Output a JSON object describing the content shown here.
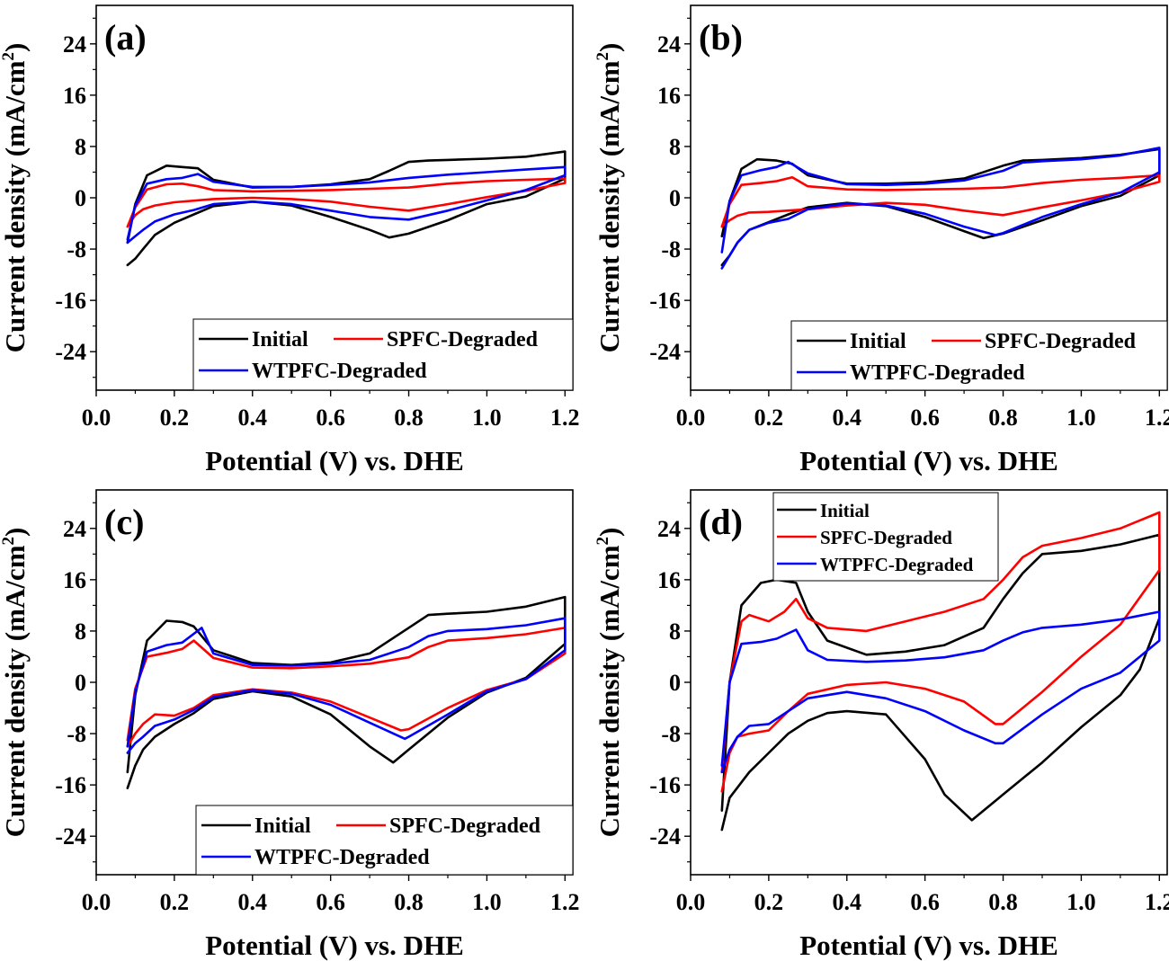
{
  "chart_data": [
    {
      "type": "line",
      "panel_label": "(a)",
      "xlabel": "Potential (V) vs. DHE",
      "ylabel": "Current density (mA/cm²)",
      "xlim": [
        0.0,
        1.22
      ],
      "ylim": [
        -30,
        30
      ],
      "xticks": [
        "0.0",
        "0.2",
        "0.4",
        "0.6",
        "0.8",
        "1.0",
        "1.2"
      ],
      "yticks": [
        "24",
        "16",
        "8",
        "0",
        "-8",
        "-16",
        "-24"
      ],
      "legend_placement": "bottom",
      "legend_layout": "two-column",
      "series": [
        {
          "name": "Initial",
          "color": "#000000",
          "x": [
            0.08,
            0.1,
            0.13,
            0.18,
            0.22,
            0.26,
            0.3,
            0.4,
            0.5,
            0.6,
            0.7,
            0.75,
            0.8,
            0.85,
            0.9,
            1.0,
            1.1,
            1.2,
            1.2,
            1.1,
            1.0,
            0.9,
            0.8,
            0.75,
            0.7,
            0.6,
            0.5,
            0.4,
            0.3,
            0.25,
            0.2,
            0.15,
            0.12,
            0.1,
            0.08
          ],
          "y": [
            -7,
            -1,
            3.5,
            5,
            4.8,
            4.6,
            2.8,
            1.6,
            1.7,
            2.1,
            2.9,
            4.2,
            5.6,
            5.8,
            5.9,
            6.1,
            6.4,
            7.2,
            3,
            0.2,
            -1,
            -3.5,
            -5.6,
            -6.2,
            -5,
            -3,
            -1.2,
            -0.6,
            -1.3,
            -2.6,
            -3.9,
            -5.8,
            -8,
            -9.5,
            -10.5
          ]
        },
        {
          "name": "SPFC-Degraded",
          "color": "#ff0000",
          "x": [
            0.08,
            0.1,
            0.13,
            0.18,
            0.22,
            0.26,
            0.3,
            0.4,
            0.5,
            0.6,
            0.7,
            0.8,
            0.9,
            1.0,
            1.1,
            1.2,
            1.2,
            1.1,
            1.0,
            0.9,
            0.8,
            0.7,
            0.6,
            0.5,
            0.4,
            0.3,
            0.2,
            0.15,
            0.12,
            0.1,
            0.08
          ],
          "y": [
            -4.5,
            -1.5,
            1.3,
            2.1,
            2.2,
            1.8,
            1.2,
            1.0,
            1.1,
            1.2,
            1.4,
            1.6,
            2.2,
            2.6,
            2.8,
            3.0,
            2.3,
            1.1,
            0.1,
            -1.0,
            -2.0,
            -1.4,
            -0.6,
            -0.2,
            0.0,
            -0.2,
            -0.7,
            -1.2,
            -1.8,
            -2.7,
            -4.5
          ]
        },
        {
          "name": "WTPFC-Degraded",
          "color": "#0000ff",
          "x": [
            0.08,
            0.1,
            0.13,
            0.18,
            0.22,
            0.26,
            0.3,
            0.4,
            0.5,
            0.6,
            0.7,
            0.8,
            0.9,
            1.0,
            1.1,
            1.2,
            1.2,
            1.1,
            1.0,
            0.9,
            0.8,
            0.7,
            0.6,
            0.5,
            0.4,
            0.3,
            0.25,
            0.2,
            0.15,
            0.12,
            0.1,
            0.08
          ],
          "y": [
            -6.5,
            -1.2,
            2.2,
            2.9,
            3.1,
            3.7,
            2.5,
            1.7,
            1.7,
            2.0,
            2.4,
            3.1,
            3.6,
            4.0,
            4.4,
            4.8,
            3.5,
            1.2,
            -0.4,
            -2.0,
            -3.4,
            -3.0,
            -2.0,
            -1.0,
            -0.6,
            -1.0,
            -1.9,
            -2.6,
            -3.7,
            -5.0,
            -6.0,
            -7.0
          ]
        }
      ]
    },
    {
      "type": "line",
      "panel_label": "(b)",
      "xlabel": "Potential (V) vs. DHE",
      "ylabel": "Current density (mA/cm²)",
      "xlim": [
        0.0,
        1.22
      ],
      "ylim": [
        -30,
        30
      ],
      "xticks": [
        "0.0",
        "0.2",
        "0.4",
        "0.6",
        "0.8",
        "1.0",
        "1.2"
      ],
      "yticks": [
        "24",
        "16",
        "8",
        "0",
        "-8",
        "-16",
        "-24"
      ],
      "legend_placement": "bottom",
      "legend_layout": "two-column",
      "series": [
        {
          "name": "Initial",
          "color": "#000000",
          "x": [
            0.08,
            0.1,
            0.13,
            0.17,
            0.22,
            0.26,
            0.3,
            0.4,
            0.5,
            0.6,
            0.7,
            0.8,
            0.85,
            0.9,
            1.0,
            1.1,
            1.2,
            1.2,
            1.1,
            1.0,
            0.9,
            0.8,
            0.75,
            0.7,
            0.6,
            0.5,
            0.4,
            0.3,
            0.25,
            0.2,
            0.15,
            0.12,
            0.1,
            0.08
          ],
          "y": [
            -6,
            -0.5,
            4.5,
            6,
            5.8,
            5.3,
            3.5,
            2.2,
            2.2,
            2.4,
            3.0,
            5.0,
            5.8,
            5.9,
            6.2,
            6.7,
            7.6,
            3.5,
            0.3,
            -1.3,
            -3.5,
            -5.6,
            -6.3,
            -5.2,
            -3.0,
            -1.3,
            -0.8,
            -1.5,
            -2.6,
            -3.8,
            -5.0,
            -7.0,
            -9.0,
            -10.5
          ]
        },
        {
          "name": "SPFC-Degraded",
          "color": "#ff0000",
          "x": [
            0.08,
            0.1,
            0.13,
            0.18,
            0.22,
            0.26,
            0.3,
            0.4,
            0.5,
            0.6,
            0.7,
            0.8,
            0.9,
            1.0,
            1.1,
            1.2,
            1.2,
            1.1,
            1.0,
            0.9,
            0.8,
            0.7,
            0.6,
            0.5,
            0.4,
            0.3,
            0.2,
            0.15,
            0.12,
            0.1,
            0.08
          ],
          "y": [
            -4.5,
            -1.0,
            2.0,
            2.3,
            2.6,
            3.2,
            1.8,
            1.3,
            1.2,
            1.3,
            1.4,
            1.6,
            2.3,
            2.8,
            3.1,
            3.5,
            2.5,
            0.8,
            -0.4,
            -1.5,
            -2.7,
            -2.0,
            -1.1,
            -0.8,
            -1.2,
            -1.8,
            -2.2,
            -2.3,
            -2.8,
            -3.5,
            -4.5
          ]
        },
        {
          "name": "WTPFC-Degraded",
          "color": "#0000ff",
          "x": [
            0.08,
            0.1,
            0.13,
            0.18,
            0.22,
            0.25,
            0.3,
            0.4,
            0.5,
            0.6,
            0.7,
            0.8,
            0.85,
            0.9,
            1.0,
            1.1,
            1.2,
            1.2,
            1.1,
            1.0,
            0.9,
            0.8,
            0.78,
            0.7,
            0.6,
            0.5,
            0.4,
            0.3,
            0.25,
            0.2,
            0.15,
            0.12,
            0.1,
            0.08
          ],
          "y": [
            -8.5,
            -0.5,
            3.5,
            4.3,
            4.8,
            5.6,
            3.8,
            2.1,
            2.0,
            2.2,
            2.7,
            4.2,
            5.5,
            5.7,
            6.0,
            6.6,
            7.8,
            4.0,
            0.8,
            -1.0,
            -3.0,
            -5.5,
            -5.8,
            -4.5,
            -2.5,
            -1.2,
            -0.9,
            -1.8,
            -3.3,
            -3.9,
            -5.0,
            -7.0,
            -9.0,
            -11.0
          ]
        }
      ]
    },
    {
      "type": "line",
      "panel_label": "(c)",
      "xlabel": "Potential (V) vs. DHE",
      "ylabel": "Current density (mA/cm²)",
      "xlim": [
        0.0,
        1.22
      ],
      "ylim": [
        -30,
        30
      ],
      "xticks": [
        "0.0",
        "0.2",
        "0.4",
        "0.6",
        "0.8",
        "1.0",
        "1.2"
      ],
      "yticks": [
        "24",
        "16",
        "8",
        "0",
        "-8",
        "-16",
        "-24"
      ],
      "legend_placement": "bottom",
      "legend_layout": "two-column",
      "series": [
        {
          "name": "Initial",
          "color": "#000000",
          "x": [
            0.08,
            0.1,
            0.13,
            0.18,
            0.22,
            0.25,
            0.3,
            0.4,
            0.5,
            0.6,
            0.7,
            0.8,
            0.85,
            0.9,
            1.0,
            1.1,
            1.2,
            1.2,
            1.1,
            1.0,
            0.9,
            0.8,
            0.76,
            0.7,
            0.6,
            0.5,
            0.4,
            0.3,
            0.25,
            0.2,
            0.15,
            0.12,
            0.1,
            0.08
          ],
          "y": [
            -14,
            -2,
            6.5,
            9.6,
            9.4,
            8.7,
            5.0,
            3.0,
            2.7,
            3.1,
            4.5,
            8.5,
            10.5,
            10.7,
            11.0,
            11.8,
            13.3,
            6,
            0.7,
            -1.6,
            -5.5,
            -10.5,
            -12.5,
            -10,
            -5,
            -2.2,
            -1.4,
            -2.6,
            -4.8,
            -6.5,
            -8.5,
            -10.5,
            -13.0,
            -16.5
          ]
        },
        {
          "name": "SPFC-Degraded",
          "color": "#ff0000",
          "x": [
            0.08,
            0.1,
            0.13,
            0.18,
            0.22,
            0.25,
            0.3,
            0.4,
            0.5,
            0.6,
            0.7,
            0.8,
            0.85,
            0.9,
            1.0,
            1.1,
            1.2,
            1.2,
            1.1,
            1.0,
            0.9,
            0.8,
            0.78,
            0.7,
            0.6,
            0.5,
            0.4,
            0.3,
            0.25,
            0.2,
            0.15,
            0.12,
            0.1,
            0.08
          ],
          "y": [
            -9,
            -1,
            4.0,
            4.6,
            5.2,
            6.5,
            3.8,
            2.3,
            2.2,
            2.5,
            2.9,
            3.9,
            5.5,
            6.5,
            6.9,
            7.5,
            8.5,
            4.5,
            0.5,
            -1.2,
            -4.0,
            -7.3,
            -7.5,
            -5.5,
            -3.0,
            -1.6,
            -1.1,
            -2.0,
            -4.0,
            -5.2,
            -5.0,
            -6.5,
            -8.0,
            -10.0
          ]
        },
        {
          "name": "WTPFC-Degraded",
          "color": "#0000ff",
          "x": [
            0.08,
            0.1,
            0.13,
            0.18,
            0.22,
            0.27,
            0.3,
            0.4,
            0.5,
            0.6,
            0.7,
            0.8,
            0.85,
            0.9,
            1.0,
            1.1,
            1.2,
            1.2,
            1.1,
            1.0,
            0.9,
            0.8,
            0.79,
            0.7,
            0.6,
            0.5,
            0.4,
            0.3,
            0.25,
            0.2,
            0.15,
            0.12,
            0.1,
            0.08
          ],
          "y": [
            -10,
            -1.5,
            4.8,
            5.8,
            6.2,
            8.5,
            4.5,
            2.7,
            2.6,
            2.9,
            3.5,
            5.5,
            7.2,
            8.0,
            8.3,
            8.9,
            10.0,
            5.0,
            0.5,
            -1.4,
            -5.0,
            -8.5,
            -8.8,
            -6.3,
            -3.5,
            -1.8,
            -1.2,
            -2.3,
            -4.3,
            -5.8,
            -6.8,
            -8.5,
            -9.5,
            -11.0
          ]
        }
      ]
    },
    {
      "type": "line",
      "panel_label": "(d)",
      "xlabel": "Potential (V) vs. DHE",
      "ylabel": "Current density (mA/cm²)",
      "xlim": [
        0.0,
        1.22
      ],
      "ylim": [
        -30,
        30
      ],
      "xticks": [
        "0.0",
        "0.2",
        "0.4",
        "0.6",
        "0.8",
        "1.0",
        "1.2"
      ],
      "yticks": [
        "24",
        "16",
        "8",
        "0",
        "-8",
        "-16",
        "-24"
      ],
      "legend_placement": "top-left",
      "legend_layout": "single-column",
      "series": [
        {
          "name": "Initial",
          "color": "#000000",
          "x": [
            0.08,
            0.1,
            0.13,
            0.18,
            0.22,
            0.27,
            0.3,
            0.35,
            0.45,
            0.55,
            0.65,
            0.75,
            0.8,
            0.85,
            0.9,
            1.0,
            1.1,
            1.2,
            1.2,
            1.15,
            1.1,
            1.0,
            0.9,
            0.8,
            0.72,
            0.65,
            0.6,
            0.5,
            0.4,
            0.35,
            0.3,
            0.25,
            0.2,
            0.15,
            0.1,
            0.08
          ],
          "y": [
            -20,
            0,
            12,
            15.5,
            16,
            15.5,
            11,
            6.5,
            4.3,
            4.8,
            5.8,
            8.5,
            13,
            17,
            20,
            20.5,
            21.5,
            23,
            10,
            2.0,
            -2.0,
            -7.0,
            -12.5,
            -17.5,
            -21.5,
            -17.5,
            -12.0,
            -5.0,
            -4.5,
            -4.8,
            -6.0,
            -8.0,
            -11.0,
            -14.0,
            -18.0,
            -23.0
          ]
        },
        {
          "name": "SPFC-Degraded",
          "color": "#ff0000",
          "x": [
            0.08,
            0.1,
            0.13,
            0.15,
            0.2,
            0.24,
            0.27,
            0.3,
            0.35,
            0.45,
            0.55,
            0.65,
            0.75,
            0.8,
            0.85,
            0.9,
            1.0,
            1.1,
            1.2,
            1.2,
            1.1,
            1.0,
            0.9,
            0.8,
            0.78,
            0.7,
            0.6,
            0.5,
            0.4,
            0.3,
            0.25,
            0.2,
            0.15,
            0.12,
            0.1,
            0.08
          ],
          "y": [
            -14,
            0,
            9.5,
            10.5,
            9.5,
            11.0,
            13.0,
            10.0,
            8.5,
            8.0,
            9.5,
            11.0,
            13.0,
            16.0,
            19.5,
            21.3,
            22.5,
            24.0,
            26.5,
            17.5,
            9.0,
            4.0,
            -1.5,
            -6.5,
            -6.5,
            -3.0,
            -1.0,
            0.0,
            -0.4,
            -1.8,
            -4.5,
            -7.5,
            -8.0,
            -8.5,
            -11.0,
            -17.0
          ]
        },
        {
          "name": "WTPFC-Degraded",
          "color": "#0000ff",
          "x": [
            0.08,
            0.1,
            0.13,
            0.18,
            0.22,
            0.27,
            0.3,
            0.35,
            0.45,
            0.55,
            0.65,
            0.75,
            0.8,
            0.85,
            0.9,
            1.0,
            1.1,
            1.2,
            1.2,
            1.1,
            1.0,
            0.9,
            0.8,
            0.78,
            0.7,
            0.6,
            0.5,
            0.4,
            0.3,
            0.25,
            0.2,
            0.15,
            0.12,
            0.1,
            0.08
          ],
          "y": [
            -13,
            0,
            6.0,
            6.3,
            6.8,
            8.2,
            5.0,
            3.5,
            3.2,
            3.4,
            3.9,
            5.0,
            6.5,
            7.8,
            8.5,
            9.0,
            9.8,
            11.0,
            6.5,
            1.5,
            -1.0,
            -5.0,
            -9.5,
            -9.5,
            -7.5,
            -4.5,
            -2.5,
            -1.5,
            -2.5,
            -4.5,
            -6.5,
            -6.8,
            -8.5,
            -10.5,
            -14.0
          ]
        }
      ]
    }
  ]
}
